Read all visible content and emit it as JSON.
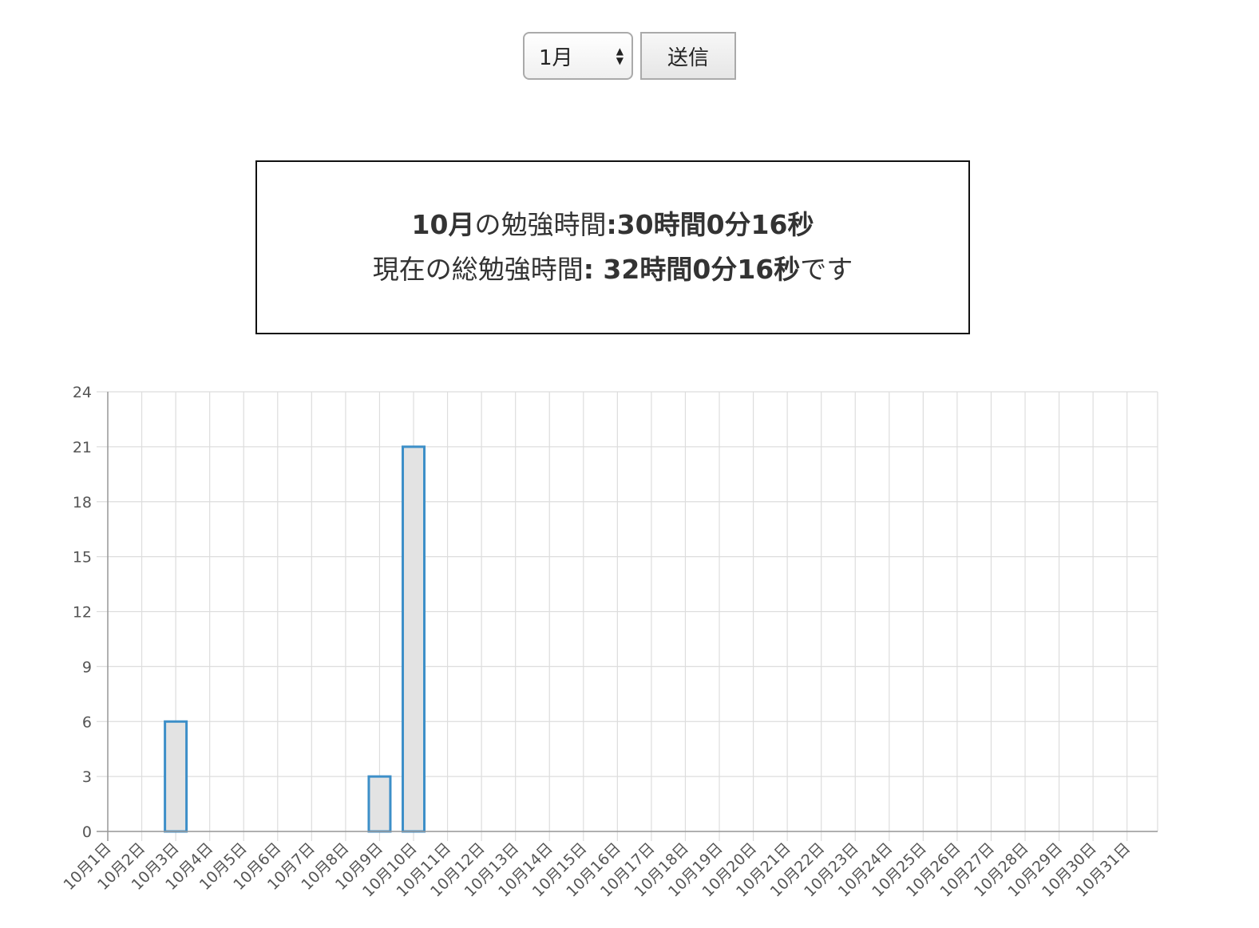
{
  "form": {
    "month_select_value": "1月",
    "submit_label": "送信"
  },
  "summary": {
    "line1_month": "10月",
    "line1_connector": "の勉強時間",
    "line1_value": ":30時間0分16秒",
    "line2_prefix": "現在の総勉強時間",
    "line2_value": ": 32時間0分16秒",
    "line2_suffix": "です"
  },
  "chart_data": {
    "type": "bar",
    "categories": [
      "10月1日",
      "10月2日",
      "10月3日",
      "10月4日",
      "10月5日",
      "10月6日",
      "10月7日",
      "10月8日",
      "10月9日",
      "10月10日",
      "10月11日",
      "10月12日",
      "10月13日",
      "10月14日",
      "10月15日",
      "10月16日",
      "10月17日",
      "10月18日",
      "10月19日",
      "10月20日",
      "10月21日",
      "10月22日",
      "10月23日",
      "10月24日",
      "10月25日",
      "10月26日",
      "10月27日",
      "10月28日",
      "10月29日",
      "10月30日",
      "10月31日"
    ],
    "values": [
      0,
      0,
      6,
      0,
      0,
      0,
      0,
      0,
      3,
      21,
      0,
      0,
      0,
      0,
      0,
      0,
      0,
      0,
      0,
      0,
      0,
      0,
      0,
      0,
      0,
      0,
      0,
      0,
      0,
      0,
      0
    ],
    "ylim": [
      0,
      24
    ],
    "yticks": [
      0,
      3,
      6,
      9,
      12,
      15,
      18,
      21,
      24
    ],
    "title": "",
    "xlabel": "",
    "ylabel": "",
    "grid": true,
    "bar_fill_color": "#e3e3e3",
    "bar_border_color": "#3d8fc8",
    "grid_color": "#dddddd",
    "axis_color": "#999999"
  }
}
